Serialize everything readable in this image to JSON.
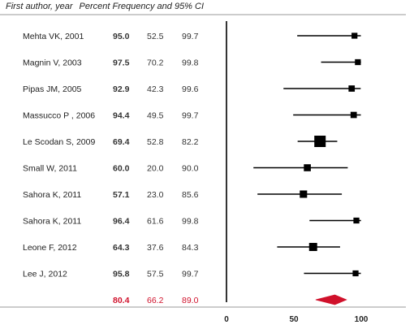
{
  "header": {
    "author_col": "First author, year",
    "stats_col": "Percent Frequency and 95% CI"
  },
  "colors": {
    "pooled": "#d0112b",
    "marker": "#000000",
    "line": "#000000"
  },
  "chart_data": {
    "type": "forest",
    "title": "",
    "xlim": [
      0,
      100
    ],
    "xticks": [
      "0",
      "50",
      "100"
    ],
    "reference_line_x": 0,
    "studies": [
      {
        "author": "Mehta VK, 2001",
        "estimate": "95.0",
        "lower": "52.5",
        "upper": "99.7",
        "weight": 0.25
      },
      {
        "author": "Magnin V, 2003",
        "estimate": "97.5",
        "lower": "70.2",
        "upper": "99.8",
        "weight": 0.25
      },
      {
        "author": "Pipas JM, 2005",
        "estimate": "92.9",
        "lower": "42.3",
        "upper": "99.6",
        "weight": 0.3
      },
      {
        "author": "Massucco P , 2006",
        "estimate": "94.4",
        "lower": "49.5",
        "upper": "99.7",
        "weight": 0.3
      },
      {
        "author": "Le Scodan S, 2009",
        "estimate": "69.4",
        "lower": "52.8",
        "upper": "82.2",
        "weight": 1.0
      },
      {
        "author": "Small W, 2011",
        "estimate": "60.0",
        "lower": "20.0",
        "upper": "90.0",
        "weight": 0.4
      },
      {
        "author": "Sahora K, 2011",
        "estimate": "57.1",
        "lower": "23.0",
        "upper": "85.6",
        "weight": 0.45
      },
      {
        "author": "Sahora K, 2011",
        "estimate": "96.4",
        "lower": "61.6",
        "upper": "99.8",
        "weight": 0.25
      },
      {
        "author": "Leone F, 2012",
        "estimate": "64.3",
        "lower": "37.6",
        "upper": "84.3",
        "weight": 0.55
      },
      {
        "author": "Lee J, 2012",
        "estimate": "95.8",
        "lower": "57.5",
        "upper": "99.7",
        "weight": 0.25
      }
    ],
    "pooled": {
      "estimate": "80.4",
      "lower": "66.2",
      "upper": "89.0"
    }
  }
}
